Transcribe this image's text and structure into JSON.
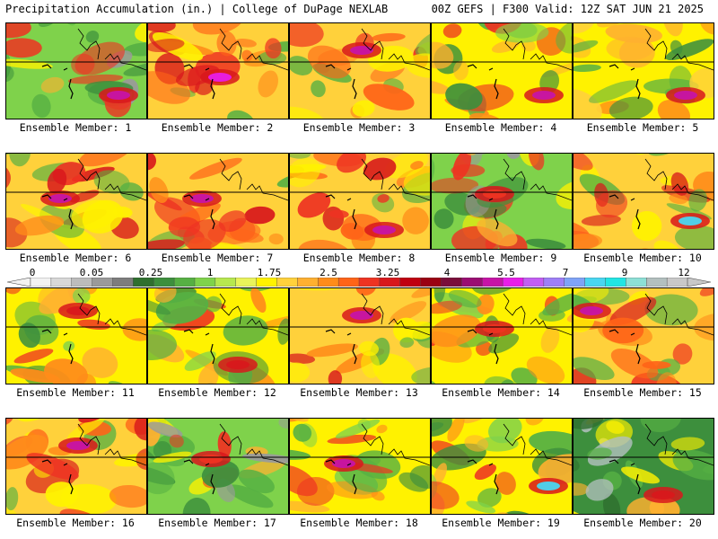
{
  "header": {
    "left": "Precipitation Accumulation (in.) | College of DuPage NEXLAB",
    "right": "00Z GEFS | F300 Valid: 12Z SAT JUN 21 2025"
  },
  "colorbar": {
    "tick_labels": [
      "0",
      "0.05",
      "0.25",
      "1",
      "1.75",
      "2.5",
      "3.25",
      "4",
      "5.5",
      "7",
      "9",
      "12"
    ],
    "colors": [
      "#f2f2f2",
      "#d8d8d8",
      "#bcbcbc",
      "#9a9a9a",
      "#7d7d7d",
      "#2f6f2f",
      "#3d8f3d",
      "#56b043",
      "#7fd24b",
      "#b7e84f",
      "#e9f35a",
      "#fff200",
      "#ffd13b",
      "#ffb030",
      "#ff8c1a",
      "#ff6418",
      "#ee3322",
      "#d8181c",
      "#c00010",
      "#9a0012",
      "#7a0e3a",
      "#9a0d72",
      "#c614a6",
      "#e81ee8",
      "#c25ef3",
      "#9e7ff7",
      "#7fa3f7",
      "#49d6f1",
      "#21e5e3",
      "#8de0d6",
      "#b3c0bf",
      "#c8c8c8"
    ]
  },
  "members": [
    {
      "label": "Ensemble Member: 1",
      "tone": "mixed-green",
      "max": "magenta-east"
    },
    {
      "label": "Ensemble Member: 2",
      "tone": "wet",
      "max": "magenta-center"
    },
    {
      "label": "Ensemble Member: 3",
      "tone": "wet",
      "max": "magenta-north"
    },
    {
      "label": "Ensemble Member: 4",
      "tone": "mixed",
      "max": "magenta-east"
    },
    {
      "label": "Ensemble Member: 5",
      "tone": "dry-yellow",
      "max": "magenta-east"
    },
    {
      "label": "Ensemble Member: 6",
      "tone": "wet",
      "max": "magenta-band"
    },
    {
      "label": "Ensemble Member: 7",
      "tone": "wet",
      "max": "magenta-band"
    },
    {
      "label": "Ensemble Member: 8",
      "tone": "wet",
      "max": "magenta-south"
    },
    {
      "label": "Ensemble Member: 9",
      "tone": "mixed-green",
      "max": "red-band"
    },
    {
      "label": "Ensemble Member: 10",
      "tone": "wet",
      "max": "cyan-east"
    },
    {
      "label": "Ensemble Member: 11",
      "tone": "mixed",
      "max": "red-north"
    },
    {
      "label": "Ensemble Member: 12",
      "tone": "mixed",
      "max": "red-south"
    },
    {
      "label": "Ensemble Member: 13",
      "tone": "wet",
      "max": "magenta-north"
    },
    {
      "label": "Ensemble Member: 14",
      "tone": "mixed",
      "max": "red-band"
    },
    {
      "label": "Ensemble Member: 15",
      "tone": "wet",
      "max": "magenta-west"
    },
    {
      "label": "Ensemble Member: 16",
      "tone": "wet",
      "max": "magenta-north"
    },
    {
      "label": "Ensemble Member: 17",
      "tone": "mixed-green",
      "max": "red-band"
    },
    {
      "label": "Ensemble Member: 18",
      "tone": "mixed",
      "max": "magenta-band"
    },
    {
      "label": "Ensemble Member: 19",
      "tone": "mixed",
      "max": "cyan-east"
    },
    {
      "label": "Ensemble Member: 20",
      "tone": "dry-green",
      "max": "red-south"
    }
  ]
}
